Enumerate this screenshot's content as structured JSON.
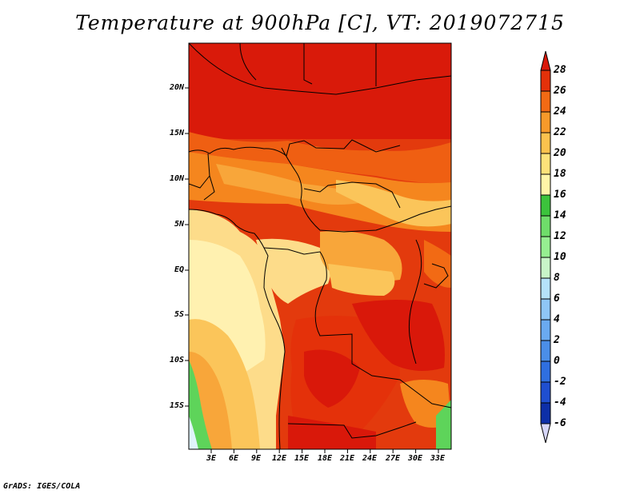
{
  "title": "Temperature at 900hPa [C], VT: 2019072715",
  "credit": "GrADS: IGES/COLA",
  "lat_labels": [
    "20N",
    "15N",
    "10N",
    "5N",
    "EQ",
    "5S",
    "10S",
    "15S"
  ],
  "lon_labels": [
    "3E",
    "6E",
    "9E",
    "12E",
    "15E",
    "18E",
    "21E",
    "24E",
    "27E",
    "30E",
    "33E"
  ],
  "colorbar": {
    "levels": [
      "-6",
      "-4",
      "-2",
      "0",
      "2",
      "4",
      "6",
      "8",
      "10",
      "12",
      "14",
      "16",
      "18",
      "20",
      "22",
      "24",
      "26",
      "28"
    ],
    "colors": [
      "#0a0a64",
      "#0d2fa8",
      "#1f4fd0",
      "#2f6fe0",
      "#4b8ee8",
      "#6aaaf0",
      "#8fc6f6",
      "#b5e2fa",
      "#c8f5c8",
      "#96ef91",
      "#6fdd6a",
      "#3cc33c",
      "#fff5a8",
      "#fde27a",
      "#fbc24e",
      "#f79a2a",
      "#f26a14",
      "#e4310a",
      "#d9180a"
    ]
  },
  "map_colors": {
    "hot": "#d91a0a",
    "red": "#e33a0d",
    "orange_red": "#ef5f12",
    "orange": "#f5861e",
    "amber": "#f8a63a",
    "yellow_orange": "#fbc55a",
    "yellow": "#fddc8a",
    "pale": "#fff1b0",
    "green": "#5ed45a",
    "pale_blue": "#dff4fb"
  }
}
